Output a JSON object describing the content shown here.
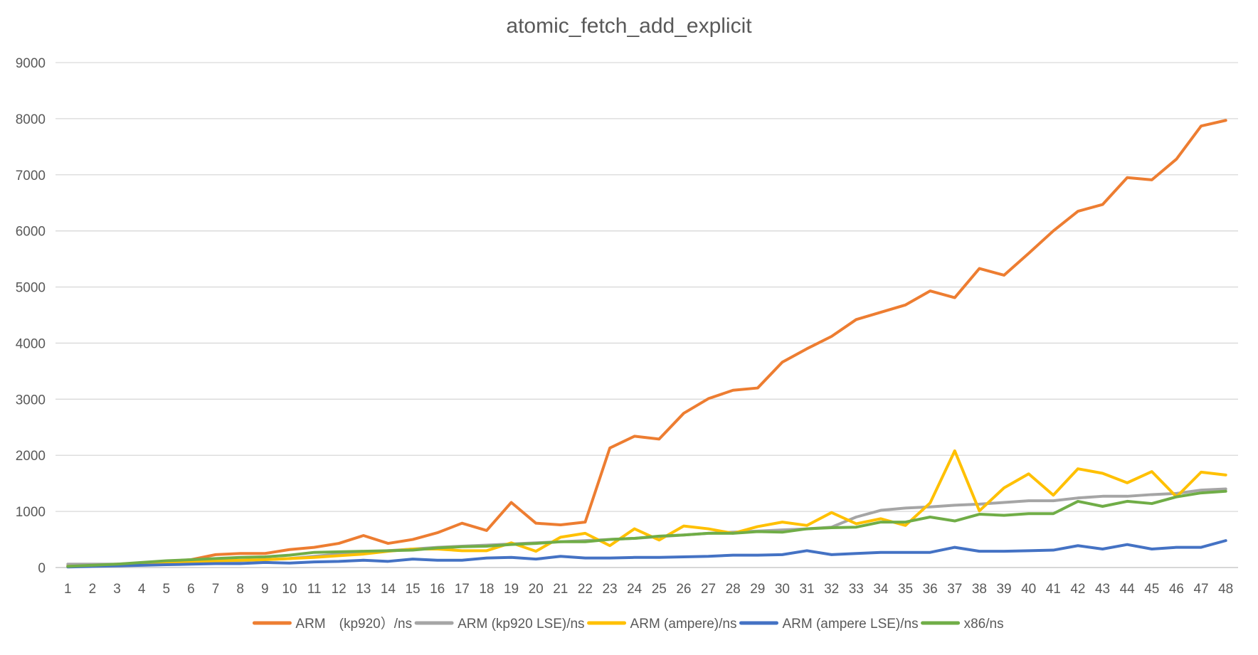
{
  "chart_data": {
    "type": "line",
    "title": "atomic_fetch_add_explicit",
    "xlabel": "",
    "ylabel": "",
    "ylim": [
      0,
      9000
    ],
    "yticks": [
      0,
      1000,
      2000,
      3000,
      4000,
      5000,
      6000,
      7000,
      8000,
      9000
    ],
    "grid": true,
    "legend": "bottom",
    "categories": [
      "1",
      "2",
      "3",
      "4",
      "5",
      "6",
      "7",
      "8",
      "9",
      "10",
      "11",
      "12",
      "13",
      "14",
      "15",
      "16",
      "17",
      "18",
      "19",
      "20",
      "21",
      "22",
      "23",
      "24",
      "25",
      "26",
      "27",
      "28",
      "29",
      "30",
      "31",
      "32",
      "33",
      "34",
      "35",
      "36",
      "37",
      "38",
      "39",
      "40",
      "41",
      "42",
      "43",
      "44",
      "45",
      "46",
      "47",
      "48"
    ],
    "series": [
      {
        "name": "ARM　(kp920）/ns",
        "color": "#ed7d31",
        "values": [
          30,
          40,
          60,
          80,
          110,
          140,
          230,
          250,
          250,
          320,
          360,
          430,
          570,
          430,
          500,
          620,
          790,
          660,
          1160,
          790,
          760,
          810,
          2130,
          2340,
          2290,
          2750,
          3010,
          3160,
          3200,
          3660,
          3900,
          4120,
          4420,
          4550,
          4680,
          4930,
          4810,
          5330,
          5210,
          5600,
          6000,
          6350,
          6470,
          6950,
          6910,
          7280,
          7870,
          7970
        ]
      },
      {
        "name": "ARM (kp920 LSE)/ns",
        "color": "#a5a5a5",
        "values": [
          60,
          60,
          60,
          70,
          80,
          90,
          110,
          120,
          140,
          160,
          200,
          240,
          270,
          300,
          330,
          360,
          380,
          400,
          420,
          440,
          460,
          480,
          500,
          520,
          550,
          580,
          610,
          630,
          650,
          670,
          690,
          720,
          900,
          1020,
          1060,
          1080,
          1110,
          1130,
          1160,
          1190,
          1190,
          1240,
          1270,
          1270,
          1300,
          1320,
          1380,
          1400
        ]
      },
      {
        "name": "ARM (ampere)/ns",
        "color": "#ffc000",
        "values": [
          20,
          30,
          40,
          60,
          80,
          100,
          120,
          130,
          140,
          160,
          180,
          210,
          240,
          290,
          330,
          330,
          300,
          300,
          440,
          290,
          540,
          610,
          390,
          690,
          490,
          740,
          690,
          610,
          730,
          810,
          750,
          980,
          780,
          870,
          750,
          1150,
          2080,
          1010,
          1420,
          1670,
          1290,
          1760,
          1680,
          1510,
          1710,
          1260,
          1700,
          1650
        ]
      },
      {
        "name": "ARM (ampere LSE)/ns",
        "color": "#4472c4",
        "values": [
          10,
          20,
          30,
          40,
          50,
          60,
          70,
          70,
          90,
          80,
          100,
          110,
          130,
          110,
          150,
          130,
          130,
          170,
          180,
          150,
          200,
          170,
          170,
          180,
          180,
          190,
          200,
          220,
          220,
          230,
          300,
          230,
          250,
          270,
          270,
          270,
          360,
          290,
          290,
          300,
          310,
          390,
          330,
          410,
          330,
          360,
          360,
          480
        ]
      },
      {
        "name": "x86/ns",
        "color": "#70ad47",
        "values": [
          20,
          40,
          60,
          90,
          120,
          140,
          160,
          180,
          190,
          220,
          270,
          280,
          290,
          300,
          310,
          350,
          370,
          380,
          410,
          430,
          460,
          460,
          500,
          520,
          560,
          580,
          610,
          610,
          640,
          630,
          690,
          710,
          720,
          810,
          810,
          900,
          830,
          950,
          930,
          960,
          960,
          1180,
          1090,
          1180,
          1140,
          1260,
          1330,
          1360
        ]
      }
    ]
  }
}
